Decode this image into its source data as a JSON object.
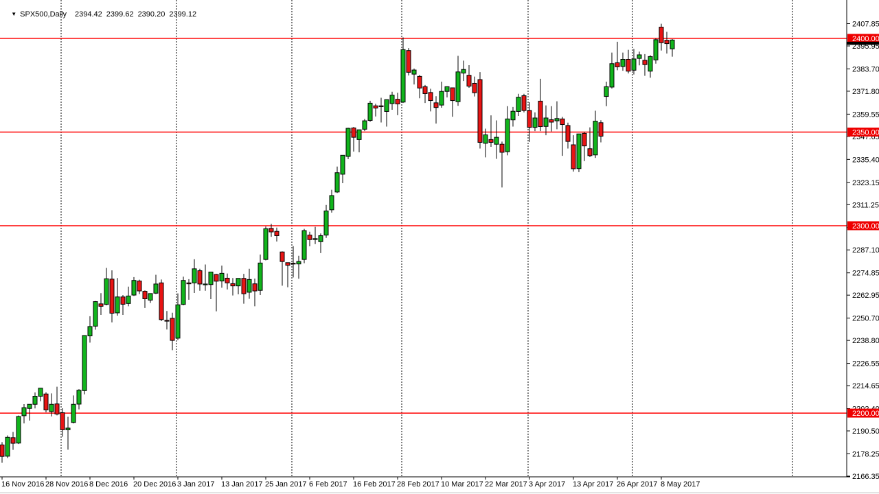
{
  "title": {
    "dropdown_icon": "▼",
    "symbol": "SPX500,Daily",
    "open": "2394.42",
    "high": "2399.62",
    "low": "2390.20",
    "close": "2399.12"
  },
  "colors": {
    "background": "#ffffff",
    "foreground": "#000000",
    "grid": "#000000",
    "candle_up": "#11b41c",
    "candle_down": "#e81414",
    "candle_border": "#000000",
    "level_line": "#ff0000",
    "level_badge": "#ee0000",
    "badge_text": "#ffffff",
    "price_marker": "#000000",
    "bottom_separator": "#d4d4d4"
  },
  "chart_data": {
    "type": "candlestick",
    "title": "SPX500,Daily",
    "xlabel": "",
    "ylabel": "",
    "grid": "dashed-vertical-month-separators",
    "legend_position": "none",
    "ylim": [
      2165.9,
      2420.5
    ],
    "y_ticks": [
      "2407.85",
      "2395.95",
      "2383.70",
      "2371.80",
      "2359.55",
      "2347.65",
      "2335.40",
      "2323.15",
      "2311.25",
      "2299.00",
      "2287.10",
      "2274.85",
      "2262.95",
      "2250.70",
      "2238.80",
      "2226.55",
      "2214.65",
      "2202.40",
      "2190.50",
      "2178.25",
      "2166.35"
    ],
    "x_labels": [
      "16 Nov 2016",
      "28 Nov 2016",
      "8 Dec 2016",
      "20 Dec 2016",
      "3 Jan 2017",
      "13 Jan 2017",
      "25 Jan 2017",
      "6 Feb 2017",
      "16 Feb 2017",
      "28 Feb 2017",
      "10 Mar 2017",
      "22 Mar 2017",
      "3 Apr 2017",
      "13 Apr 2017",
      "26 Apr 2017",
      "8 May 2017"
    ],
    "hlines": [
      {
        "label": "2400.00",
        "value": 2400.0
      },
      {
        "label": "2350.00",
        "value": 2350.0
      },
      {
        "label": "2300.00",
        "value": 2300.0
      },
      {
        "label": "2200.00",
        "value": 2200.0
      }
    ],
    "month_gridline_indices": [
      11,
      32,
      53,
      73,
      96,
      115
    ],
    "extra_gridline_x": 1154,
    "price_marker": {
      "value": 2399.12
    },
    "candles": [
      {
        "d": "16 Nov 2016",
        "o": 2183.0,
        "h": 2184.5,
        "l": 2173.5,
        "c": 2176.9
      },
      {
        "d": "17 Nov 2016",
        "o": 2177.0,
        "h": 2188.1,
        "l": 2176.0,
        "c": 2187.1
      },
      {
        "d": "18 Nov 2016",
        "o": 2186.9,
        "h": 2189.9,
        "l": 2180.4,
        "c": 2183.9
      },
      {
        "d": "21 Nov 2016",
        "o": 2184.0,
        "h": 2198.7,
        "l": 2183.5,
        "c": 2198.2
      },
      {
        "d": "22 Nov 2016",
        "o": 2198.6,
        "h": 2204.8,
        "l": 2194.5,
        "c": 2202.9
      },
      {
        "d": "23 Nov 2016",
        "o": 2202.5,
        "h": 2204.7,
        "l": 2196.0,
        "c": 2204.7
      },
      {
        "d": "24 Nov 2016",
        "o": 2204.7,
        "h": 2211.0,
        "l": 2202.5,
        "c": 2209.0
      },
      {
        "d": "25 Nov 2016",
        "o": 2209.0,
        "h": 2213.4,
        "l": 2206.3,
        "c": 2213.3
      },
      {
        "d": "28 Nov 2016",
        "o": 2210.2,
        "h": 2211.1,
        "l": 2200.4,
        "c": 2201.7
      },
      {
        "d": "29 Nov 2016",
        "o": 2200.8,
        "h": 2210.5,
        "l": 2198.2,
        "c": 2204.7
      },
      {
        "d": "30 Nov 2016",
        "o": 2204.9,
        "h": 2214.1,
        "l": 2198.8,
        "c": 2199.5
      },
      {
        "d": "1 Dec 2016",
        "o": 2200.2,
        "h": 2202.6,
        "l": 2187.4,
        "c": 2191.1
      },
      {
        "d": "2 Dec 2016",
        "o": 2191.1,
        "h": 2198.0,
        "l": 2180.5,
        "c": 2192.0
      },
      {
        "d": "5 Dec 2016",
        "o": 2195.0,
        "h": 2209.4,
        "l": 2194.5,
        "c": 2204.7
      },
      {
        "d": "6 Dec 2016",
        "o": 2204.8,
        "h": 2212.8,
        "l": 2202.0,
        "c": 2212.2
      },
      {
        "d": "7 Dec 2016",
        "o": 2212.0,
        "h": 2241.6,
        "l": 2210.0,
        "c": 2241.4
      },
      {
        "d": "8 Dec 2016",
        "o": 2241.2,
        "h": 2251.7,
        "l": 2237.6,
        "c": 2246.2
      },
      {
        "d": "9 Dec 2016",
        "o": 2246.4,
        "h": 2259.8,
        "l": 2244.5,
        "c": 2259.5
      },
      {
        "d": "12 Dec 2016",
        "o": 2258.3,
        "h": 2264.0,
        "l": 2252.4,
        "c": 2257.0
      },
      {
        "d": "13 Dec 2016",
        "o": 2258.0,
        "h": 2277.5,
        "l": 2257.5,
        "c": 2271.7
      },
      {
        "d": "14 Dec 2016",
        "o": 2271.5,
        "h": 2276.2,
        "l": 2248.4,
        "c": 2253.3
      },
      {
        "d": "15 Dec 2016",
        "o": 2253.5,
        "h": 2272.1,
        "l": 2252.0,
        "c": 2262.0
      },
      {
        "d": "16 Dec 2016",
        "o": 2262.0,
        "h": 2263.0,
        "l": 2252.4,
        "c": 2258.1
      },
      {
        "d": "19 Dec 2016",
        "o": 2258.5,
        "h": 2267.5,
        "l": 2257.0,
        "c": 2262.5
      },
      {
        "d": "20 Dec 2016",
        "o": 2263.0,
        "h": 2272.6,
        "l": 2262.5,
        "c": 2270.8
      },
      {
        "d": "21 Dec 2016",
        "o": 2270.5,
        "h": 2271.2,
        "l": 2263.5,
        "c": 2265.2
      },
      {
        "d": "22 Dec 2016",
        "o": 2265.0,
        "h": 2265.5,
        "l": 2256.1,
        "c": 2261.0
      },
      {
        "d": "23 Dec 2016",
        "o": 2260.3,
        "h": 2263.8,
        "l": 2258.8,
        "c": 2263.8
      },
      {
        "d": "27 Dec 2016",
        "o": 2264.0,
        "h": 2273.8,
        "l": 2263.5,
        "c": 2268.9
      },
      {
        "d": "28 Dec 2016",
        "o": 2269.5,
        "h": 2271.3,
        "l": 2249.1,
        "c": 2249.9
      },
      {
        "d": "29 Dec 2016",
        "o": 2249.5,
        "h": 2254.5,
        "l": 2244.6,
        "c": 2249.3
      },
      {
        "d": "30 Dec 2016",
        "o": 2250.6,
        "h": 2253.6,
        "l": 2233.6,
        "c": 2238.8
      },
      {
        "d": "3 Jan 2017",
        "o": 2240.0,
        "h": 2263.9,
        "l": 2239.0,
        "c": 2257.8
      },
      {
        "d": "4 Jan 2017",
        "o": 2258.0,
        "h": 2272.8,
        "l": 2257.5,
        "c": 2270.8
      },
      {
        "d": "5 Jan 2017",
        "o": 2269.5,
        "h": 2271.5,
        "l": 2260.5,
        "c": 2269.0
      },
      {
        "d": "6 Jan 2017",
        "o": 2269.5,
        "h": 2282.1,
        "l": 2264.1,
        "c": 2277.0
      },
      {
        "d": "9 Jan 2017",
        "o": 2276.0,
        "h": 2277.0,
        "l": 2265.3,
        "c": 2268.9
      },
      {
        "d": "10 Jan 2017",
        "o": 2268.9,
        "h": 2279.3,
        "l": 2265.3,
        "c": 2268.9
      },
      {
        "d": "11 Jan 2017",
        "o": 2268.6,
        "h": 2275.3,
        "l": 2260.8,
        "c": 2275.3
      },
      {
        "d": "12 Jan 2017",
        "o": 2274.0,
        "h": 2274.3,
        "l": 2254.3,
        "c": 2270.4
      },
      {
        "d": "13 Jan 2017",
        "o": 2270.5,
        "h": 2278.7,
        "l": 2266.9,
        "c": 2274.6
      },
      {
        "d": "16 Jan 2017",
        "o": 2272.0,
        "h": 2274.5,
        "l": 2266.0,
        "c": 2269.5
      },
      {
        "d": "17 Jan 2017",
        "o": 2269.1,
        "h": 2272.1,
        "l": 2262.8,
        "c": 2267.9
      },
      {
        "d": "18 Jan 2017",
        "o": 2267.9,
        "h": 2272.0,
        "l": 2263.4,
        "c": 2271.9
      },
      {
        "d": "19 Jan 2017",
        "o": 2271.9,
        "h": 2274.3,
        "l": 2258.4,
        "c": 2263.7
      },
      {
        "d": "20 Jan 2017",
        "o": 2264.5,
        "h": 2277.0,
        "l": 2261.0,
        "c": 2271.3
      },
      {
        "d": "23 Jan 2017",
        "o": 2269.0,
        "h": 2271.8,
        "l": 2257.0,
        "c": 2265.2
      },
      {
        "d": "24 Jan 2017",
        "o": 2265.5,
        "h": 2284.6,
        "l": 2263.0,
        "c": 2280.1
      },
      {
        "d": "25 Jan 2017",
        "o": 2282.0,
        "h": 2299.6,
        "l": 2281.5,
        "c": 2298.4
      },
      {
        "d": "26 Jan 2017",
        "o": 2298.6,
        "h": 2301.0,
        "l": 2294.1,
        "c": 2296.7
      },
      {
        "d": "27 Jan 2017",
        "o": 2297.0,
        "h": 2299.0,
        "l": 2291.6,
        "c": 2294.7
      },
      {
        "d": "30 Jan 2017",
        "o": 2286.0,
        "h": 2286.3,
        "l": 2268.0,
        "c": 2280.9
      },
      {
        "d": "31 Jan 2017",
        "o": 2280.3,
        "h": 2280.3,
        "l": 2267.2,
        "c": 2278.9
      },
      {
        "d": "1 Feb 2017",
        "o": 2280.0,
        "h": 2289.1,
        "l": 2272.4,
        "c": 2279.6
      },
      {
        "d": "2 Feb 2017",
        "o": 2279.6,
        "h": 2284.0,
        "l": 2271.7,
        "c": 2280.9
      },
      {
        "d": "3 Feb 2017",
        "o": 2282.0,
        "h": 2298.3,
        "l": 2280.0,
        "c": 2297.4
      },
      {
        "d": "6 Feb 2017",
        "o": 2295.0,
        "h": 2296.8,
        "l": 2289.0,
        "c": 2292.6
      },
      {
        "d": "7 Feb 2017",
        "o": 2293.0,
        "h": 2299.4,
        "l": 2290.2,
        "c": 2293.1
      },
      {
        "d": "8 Feb 2017",
        "o": 2291.5,
        "h": 2295.9,
        "l": 2285.4,
        "c": 2294.7
      },
      {
        "d": "9 Feb 2017",
        "o": 2295.0,
        "h": 2311.1,
        "l": 2293.5,
        "c": 2307.9
      },
      {
        "d": "10 Feb 2017",
        "o": 2308.5,
        "h": 2319.2,
        "l": 2307.0,
        "c": 2316.1
      },
      {
        "d": "13 Feb 2017",
        "o": 2318.0,
        "h": 2331.6,
        "l": 2317.5,
        "c": 2328.3
      },
      {
        "d": "14 Feb 2017",
        "o": 2327.5,
        "h": 2337.6,
        "l": 2322.7,
        "c": 2337.6
      },
      {
        "d": "15 Feb 2017",
        "o": 2337.0,
        "h": 2352.3,
        "l": 2335.5,
        "c": 2352.0
      },
      {
        "d": "16 Feb 2017",
        "o": 2352.2,
        "h": 2352.7,
        "l": 2339.6,
        "c": 2347.2
      },
      {
        "d": "17 Feb 2017",
        "o": 2346.0,
        "h": 2351.3,
        "l": 2339.2,
        "c": 2351.2
      },
      {
        "d": "20 Feb 2017",
        "o": 2351.5,
        "h": 2357.0,
        "l": 2350.5,
        "c": 2356.0
      },
      {
        "d": "21 Feb 2017",
        "o": 2356.2,
        "h": 2366.7,
        "l": 2355.5,
        "c": 2365.4
      },
      {
        "d": "22 Feb 2017",
        "o": 2364.0,
        "h": 2365.1,
        "l": 2358.3,
        "c": 2362.8
      },
      {
        "d": "23 Feb 2017",
        "o": 2364.0,
        "h": 2368.3,
        "l": 2355.1,
        "c": 2363.8
      },
      {
        "d": "24 Feb 2017",
        "o": 2361.0,
        "h": 2367.3,
        "l": 2352.9,
        "c": 2367.3
      },
      {
        "d": "27 Feb 2017",
        "o": 2365.2,
        "h": 2371.5,
        "l": 2361.9,
        "c": 2369.7
      },
      {
        "d": "28 Feb 2017",
        "o": 2367.5,
        "h": 2371.0,
        "l": 2359.0,
        "c": 2365.0
      },
      {
        "d": "1 Mar 2017",
        "o": 2366.0,
        "h": 2400.5,
        "l": 2365.5,
        "c": 2394.0
      },
      {
        "d": "2 Mar 2017",
        "o": 2393.5,
        "h": 2394.8,
        "l": 2380.2,
        "c": 2381.9
      },
      {
        "d": "3 Mar 2017",
        "o": 2380.9,
        "h": 2383.9,
        "l": 2375.4,
        "c": 2383.1
      },
      {
        "d": "6 Mar 2017",
        "o": 2379.7,
        "h": 2380.5,
        "l": 2368.0,
        "c": 2373.5
      },
      {
        "d": "7 Mar 2017",
        "o": 2374.2,
        "h": 2375.1,
        "l": 2365.5,
        "c": 2370.5
      },
      {
        "d": "8 Mar 2017",
        "o": 2371.1,
        "h": 2373.1,
        "l": 2361.0,
        "c": 2366.8
      },
      {
        "d": "9 Mar 2017",
        "o": 2365.6,
        "h": 2369.1,
        "l": 2354.5,
        "c": 2363.1
      },
      {
        "d": "10 Mar 2017",
        "o": 2364.4,
        "h": 2376.9,
        "l": 2363.0,
        "c": 2371.7
      },
      {
        "d": "13 Mar 2017",
        "o": 2371.7,
        "h": 2374.4,
        "l": 2368.5,
        "c": 2374.2
      },
      {
        "d": "14 Mar 2017",
        "o": 2373.6,
        "h": 2373.6,
        "l": 2358.2,
        "c": 2366.8
      },
      {
        "d": "15 Mar 2017",
        "o": 2366.2,
        "h": 2390.7,
        "l": 2364.0,
        "c": 2382.1
      },
      {
        "d": "16 Mar 2017",
        "o": 2381.5,
        "h": 2388.1,
        "l": 2377.2,
        "c": 2383.4
      },
      {
        "d": "17 Mar 2017",
        "o": 2380.3,
        "h": 2385.7,
        "l": 2373.6,
        "c": 2374.5
      },
      {
        "d": "20 Mar 2017",
        "o": 2376.0,
        "h": 2379.6,
        "l": 2369.0,
        "c": 2371.0
      },
      {
        "d": "21 Mar 2017",
        "o": 2378.0,
        "h": 2382.0,
        "l": 2341.2,
        "c": 2344.5
      },
      {
        "d": "22 Mar 2017",
        "o": 2344.0,
        "h": 2351.8,
        "l": 2336.5,
        "c": 2348.5
      },
      {
        "d": "23 Mar 2017",
        "o": 2346.0,
        "h": 2358.9,
        "l": 2342.1,
        "c": 2344.5
      },
      {
        "d": "24 Mar 2017",
        "o": 2343.5,
        "h": 2356.2,
        "l": 2335.7,
        "c": 2347.2
      },
      {
        "d": "27 Mar 2017",
        "o": 2343.5,
        "h": 2344.9,
        "l": 2320.4,
        "c": 2339.2
      },
      {
        "d": "28 Mar 2017",
        "o": 2339.5,
        "h": 2363.8,
        "l": 2337.6,
        "c": 2357.0
      },
      {
        "d": "29 Mar 2017",
        "o": 2356.5,
        "h": 2363.4,
        "l": 2352.9,
        "c": 2361.1
      },
      {
        "d": "30 Mar 2017",
        "o": 2361.0,
        "h": 2370.4,
        "l": 2358.6,
        "c": 2368.6
      },
      {
        "d": "31 Mar 2017",
        "o": 2369.4,
        "h": 2370.4,
        "l": 2360.5,
        "c": 2361.5
      },
      {
        "d": "3 Apr 2017",
        "o": 2361.5,
        "h": 2365.9,
        "l": 2344.7,
        "c": 2352.5
      },
      {
        "d": "4 Apr 2017",
        "o": 2352.5,
        "h": 2360.5,
        "l": 2350.5,
        "c": 2357.5
      },
      {
        "d": "5 Apr 2017",
        "o": 2366.5,
        "h": 2378.4,
        "l": 2350.5,
        "c": 2352.9
      },
      {
        "d": "6 Apr 2017",
        "o": 2353.0,
        "h": 2364.2,
        "l": 2348.3,
        "c": 2357.5
      },
      {
        "d": "7 Apr 2017",
        "o": 2356.6,
        "h": 2363.8,
        "l": 2350.3,
        "c": 2355.3
      },
      {
        "d": "10 Apr 2017",
        "o": 2356.0,
        "h": 2366.4,
        "l": 2351.5,
        "c": 2357.2
      },
      {
        "d": "11 Apr 2017",
        "o": 2357.0,
        "h": 2358.1,
        "l": 2337.3,
        "c": 2354.0
      },
      {
        "d": "12 Apr 2017",
        "o": 2353.5,
        "h": 2355.0,
        "l": 2341.2,
        "c": 2345.0
      },
      {
        "d": "13 Apr 2017",
        "o": 2343.2,
        "h": 2348.3,
        "l": 2328.9,
        "c": 2330.4
      },
      {
        "d": "17 Apr 2017",
        "o": 2330.5,
        "h": 2349.1,
        "l": 2328.6,
        "c": 2349.0
      },
      {
        "d": "18 Apr 2017",
        "o": 2349.3,
        "h": 2350.0,
        "l": 2334.5,
        "c": 2342.6
      },
      {
        "d": "19 Apr 2017",
        "o": 2341.1,
        "h": 2352.5,
        "l": 2336.6,
        "c": 2337.4
      },
      {
        "d": "20 Apr 2017",
        "o": 2337.8,
        "h": 2361.4,
        "l": 2336.2,
        "c": 2355.8
      },
      {
        "d": "21 Apr 2017",
        "o": 2355.0,
        "h": 2356.3,
        "l": 2344.5,
        "c": 2347.8
      },
      {
        "d": "24 Apr 2017",
        "o": 2369.0,
        "h": 2376.9,
        "l": 2363.8,
        "c": 2374.2
      },
      {
        "d": "25 Apr 2017",
        "o": 2374.0,
        "h": 2392.4,
        "l": 2373.2,
        "c": 2386.5
      },
      {
        "d": "26 Apr 2017",
        "o": 2387.0,
        "h": 2398.2,
        "l": 2383.0,
        "c": 2384.8
      },
      {
        "d": "27 Apr 2017",
        "o": 2385.0,
        "h": 2392.4,
        "l": 2382.7,
        "c": 2388.8
      },
      {
        "d": "28 Apr 2017",
        "o": 2388.8,
        "h": 2393.9,
        "l": 2381.3,
        "c": 2382.5
      },
      {
        "d": "1 May 2017",
        "o": 2383.0,
        "h": 2394.4,
        "l": 2380.7,
        "c": 2389.0
      },
      {
        "d": "2 May 2017",
        "o": 2389.3,
        "h": 2392.9,
        "l": 2385.6,
        "c": 2391.2
      },
      {
        "d": "3 May 2017",
        "o": 2388.3,
        "h": 2391.6,
        "l": 2380.0,
        "c": 2386.0
      },
      {
        "d": "4 May 2017",
        "o": 2382.5,
        "h": 2391.0,
        "l": 2379.0,
        "c": 2390.3
      },
      {
        "d": "5 May 2017",
        "o": 2388.5,
        "h": 2400.0,
        "l": 2386.5,
        "c": 2399.3
      },
      {
        "d": "8 May 2017",
        "o": 2406.0,
        "h": 2407.8,
        "l": 2393.5,
        "c": 2397.7
      },
      {
        "d": "9 May 2017",
        "o": 2399.0,
        "h": 2403.5,
        "l": 2391.9,
        "c": 2397.2
      },
      {
        "d": "10 May 2017",
        "o": 2394.42,
        "h": 2399.62,
        "l": 2390.2,
        "c": 2399.12
      }
    ]
  }
}
